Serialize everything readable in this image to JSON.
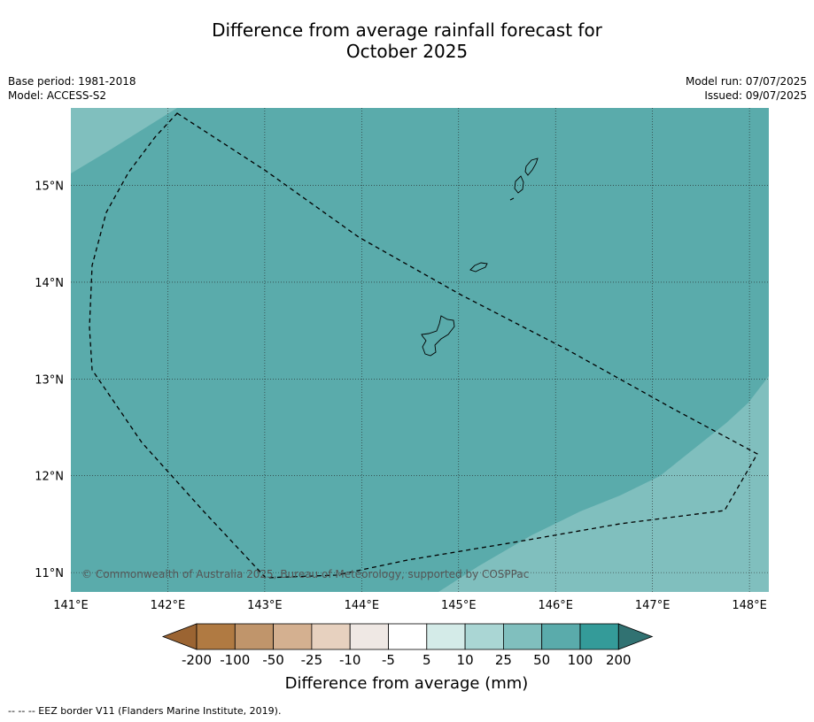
{
  "title_line1": "Difference from average rainfall forecast for",
  "title_line2": "October 2025",
  "meta_left": {
    "base_period": "Base period: 1981-2018",
    "model": "Model: ACCESS-S2"
  },
  "meta_right": {
    "model_run": "Model run: 07/07/2025",
    "issued": "Issued: 09/07/2025"
  },
  "map": {
    "lon_range": [
      141.0,
      148.2
    ],
    "lat_range": [
      10.8,
      15.8
    ],
    "lon_ticks": [
      "141°E",
      "142°E",
      "143°E",
      "144°E",
      "145°E",
      "146°E",
      "147°E",
      "148°E"
    ],
    "lat_ticks": [
      "11°N",
      "12°N",
      "13°N",
      "14°N",
      "15°N"
    ],
    "copyright": "© Commonwealth of Australia 2025, Bureau of Meteorology, supported by COSPPac",
    "region_colors": {
      "50_to_100": "#5aabab",
      "25_to_50": "#80bfbe"
    }
  },
  "colorbar": {
    "labels": [
      "-200",
      "-100",
      "-50",
      "-25",
      "-10",
      "-5",
      "5",
      "10",
      "25",
      "50",
      "100",
      "200"
    ],
    "colors": [
      "#9b6432",
      "#b07a42",
      "#c0956b",
      "#d4b090",
      "#e7d1bf",
      "#efe8e4",
      "#ffffff",
      "#d4ebe8",
      "#aad6d4",
      "#80bfbe",
      "#5aabab",
      "#349b99",
      "#317272"
    ],
    "title": "Difference from average (mm)"
  },
  "footer": "--  --  -- EEZ border V11 (Flanders Marine Institute, 2019)."
}
